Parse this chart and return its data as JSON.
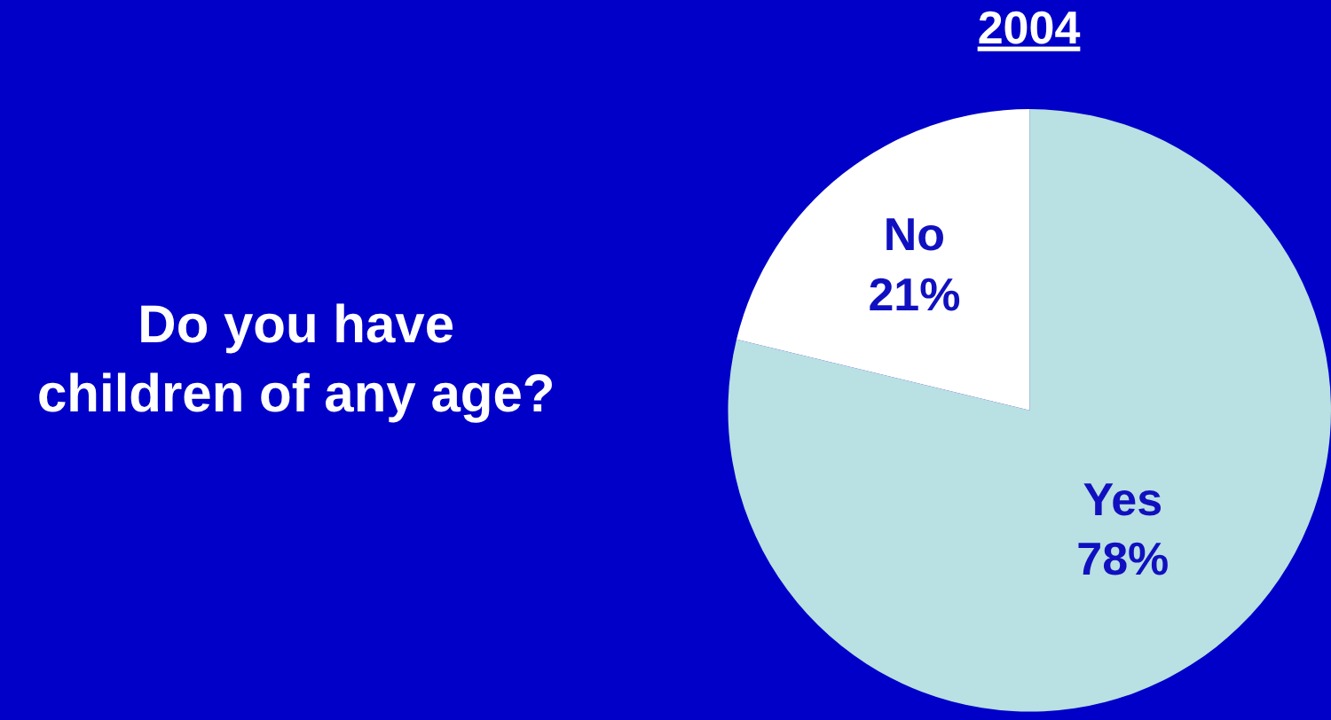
{
  "chart_data": {
    "type": "pie",
    "title": "2004",
    "categories": [
      "Yes",
      "No"
    ],
    "values": [
      78,
      21
    ],
    "colors": [
      "#b9e0e2",
      "#ffffff"
    ],
    "value_labels": [
      "78%",
      "21%"
    ],
    "annotations": [
      "Do you have children of any age?"
    ],
    "legend": false
  }
}
